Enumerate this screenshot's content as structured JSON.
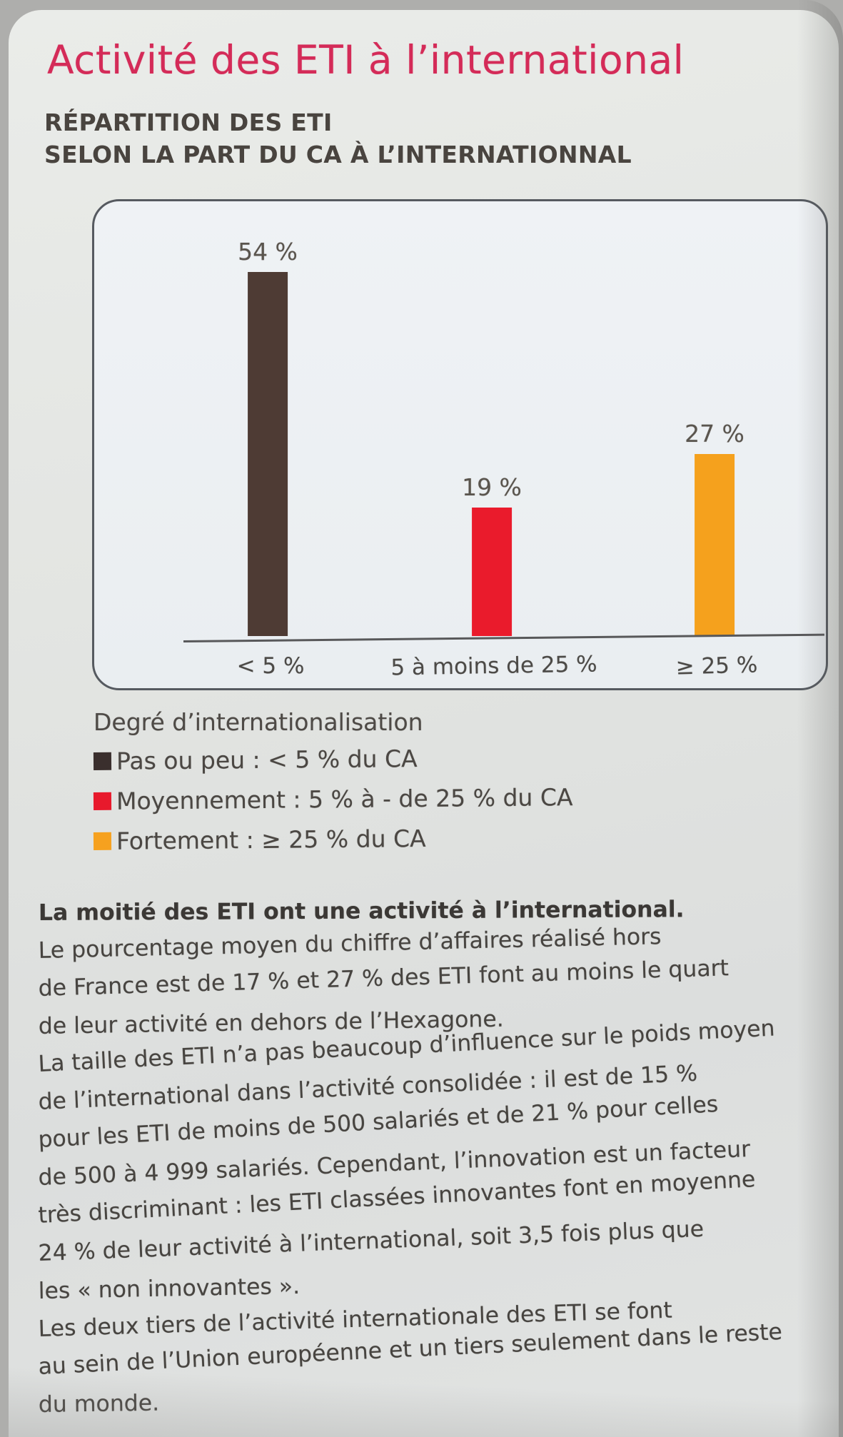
{
  "page": {
    "title": "Activité des ETI à l’international",
    "subtitle_line1": "RÉPARTITION DES ETI",
    "subtitle_line2": "SELON LA PART DU CA À L’INTERNATIONNAL"
  },
  "chart_data": {
    "type": "bar",
    "title": "Répartition des ETI selon la part du CA à l'internationnal",
    "categories": [
      "< 5 %",
      "5 à moins de 25 %",
      "≥ 25 %"
    ],
    "values": [
      54,
      19,
      27
    ],
    "value_labels": [
      "54 %",
      "19 %",
      "27 %"
    ],
    "colors": [
      "#4e3b34",
      "#ea1b2c",
      "#f5a11d"
    ],
    "xlabel": "",
    "ylabel": "",
    "ylim": [
      0,
      60
    ],
    "grid": false,
    "legend_position": "below-chart"
  },
  "legend": {
    "title": "Degré d’internationalisation",
    "items": [
      {
        "label": "Pas ou peu : < 5 % du CA",
        "color": "#3a2f2d"
      },
      {
        "label": "Moyennement : 5 % à - de 25 % du CA",
        "color": "#e8192c"
      },
      {
        "label": "Fortement : ≥ 25 % du CA",
        "color": "#f6a11f"
      }
    ]
  },
  "body": {
    "lead": "La moitié des ETI ont une activité à l’international.",
    "lines": [
      "Le pourcentage moyen du chiffre d’affaires réalisé hors",
      "de France est de 17 % et 27 % des ETI font au moins le quart",
      "de leur activité en dehors de l’Hexagone.",
      "La taille des ETI n’a pas beaucoup d’influence sur le poids moyen",
      "de l’international dans l’activité consolidée : il est de 15 %",
      "pour les ETI de moins de 500 salariés et de 21 % pour celles",
      "de 500 à 4 999 salariés. Cependant, l’innovation est un facteur",
      "très discriminant : les ETI classées innovantes font en moyenne",
      "24 % de leur activité à l’international, soit 3,5 fois plus que",
      "les « non innovantes ».",
      "Les deux tiers de l’activité internationale des ETI se font",
      "au sein de l’Union européenne et un tiers seulement dans le reste",
      "du monde."
    ]
  }
}
